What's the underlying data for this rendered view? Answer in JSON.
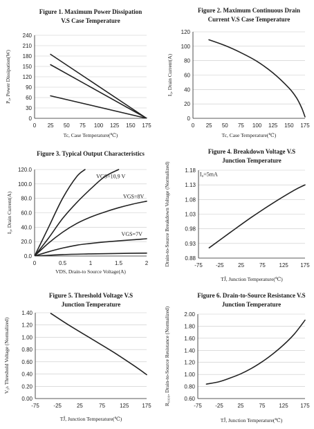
{
  "chart_data": [
    {
      "type": "line",
      "title": [
        "Figure 1. Maximum Power Dissipation",
        "V.S Case Temperature"
      ],
      "xlabel": "Tc, Case Temperature(℃)",
      "ylabel": "P₀, Power Dissipation(W)",
      "xlim": [
        0,
        175
      ],
      "ylim": [
        0,
        240
      ],
      "xticks": [
        0,
        25,
        50,
        75,
        100,
        125,
        150,
        175
      ],
      "yticks": [
        0,
        30,
        60,
        90,
        120,
        150,
        180,
        210,
        240
      ],
      "grid": "horizontal",
      "series": [
        {
          "x": [
            25,
            175
          ],
          "y": [
            185,
            0
          ]
        },
        {
          "x": [
            25,
            175
          ],
          "y": [
            155,
            0
          ]
        },
        {
          "x": [
            25,
            175
          ],
          "y": [
            65,
            0
          ]
        }
      ],
      "annotations": []
    },
    {
      "type": "line",
      "title": [
        "Figure 2. Maximum Continuous Drain",
        "Current V.S Case Temperature"
      ],
      "xlabel": "Tc, Case Temperature(℃)",
      "ylabel": "I₀, Drain Current(A)",
      "xlim": [
        0,
        175
      ],
      "ylim": [
        0,
        120
      ],
      "xticks": [
        0,
        25,
        50,
        75,
        100,
        125,
        150,
        175
      ],
      "yticks": [
        0,
        20,
        40,
        60,
        80,
        100,
        120
      ],
      "grid": "horizontal",
      "series": [
        {
          "x": [
            25,
            50,
            75,
            100,
            125,
            150,
            162,
            170,
            175
          ],
          "y": [
            109,
            101,
            91,
            79,
            63,
            42,
            28,
            14,
            2
          ]
        }
      ],
      "annotations": []
    },
    {
      "type": "line",
      "title": [
        "Figure 3. Typical Output Characteristics"
      ],
      "xlabel": "VDS, Drain-to Source Voltage(A)",
      "ylabel": "I₀, Drain Current(A)",
      "xlim": [
        0,
        2
      ],
      "ylim": [
        0,
        120
      ],
      "xticks": [
        0,
        0.5,
        1,
        1.5,
        2
      ],
      "yticks": [
        0,
        20,
        40,
        60,
        80,
        100,
        120
      ],
      "grid": "horizontal",
      "series": [
        {
          "x": [
            0,
            0.25,
            0.5,
            0.75,
            0.9
          ],
          "y": [
            0,
            40,
            80,
            110,
            122
          ]
        },
        {
          "x": [
            0,
            0.25,
            0.5,
            0.75,
            1.0,
            1.25,
            1.5
          ],
          "y": [
            0,
            25,
            52,
            74,
            93,
            110,
            122
          ]
        },
        {
          "x": [
            0,
            0.25,
            0.5,
            0.75,
            1.0,
            1.25,
            1.5,
            1.75,
            2.0
          ],
          "y": [
            0,
            18,
            33,
            45,
            54,
            61,
            67,
            72,
            76
          ]
        },
        {
          "x": [
            0,
            0.25,
            0.5,
            0.75,
            1.0,
            1.25,
            1.5,
            1.75,
            2.0
          ],
          "y": [
            0,
            6,
            11,
            15,
            17.5,
            19.5,
            21,
            22.5,
            24
          ]
        },
        {
          "x": [
            0,
            0.5,
            1.0,
            1.5,
            2.0
          ],
          "y": [
            0,
            2,
            3,
            3.6,
            4
          ]
        }
      ],
      "annotations": [
        {
          "text": "VGS=10,9 V",
          "x": 1.1,
          "y": 108
        },
        {
          "text": "VGS=8V",
          "x": 1.58,
          "y": 80
        },
        {
          "text": "VGS=7V",
          "x": 1.55,
          "y": 28
        }
      ]
    },
    {
      "type": "line",
      "title": [
        "Figure 4. Breakdown Voltage V.S",
        "Junction Temperature"
      ],
      "xlabel": "TĴ, Junction Temperature(℃)",
      "ylabel": "Drain-to-Source Breakdown Voltage (Normalized)",
      "xlim": [
        -75,
        175
      ],
      "ylim": [
        0.88,
        1.18
      ],
      "xticks": [
        -75,
        -25,
        25,
        75,
        125,
        175
      ],
      "yticks": [
        0.88,
        0.93,
        0.98,
        1.03,
        1.08,
        1.13,
        1.18
      ],
      "grid": "horizontal",
      "series": [
        {
          "x": [
            -50,
            0,
            50,
            100,
            150,
            175
          ],
          "y": [
            0.915,
            0.968,
            1.02,
            1.068,
            1.112,
            1.13
          ]
        }
      ],
      "annotations": [
        {
          "text": "I₀=5mA",
          "x": -72,
          "y": 1.16
        }
      ]
    },
    {
      "type": "line",
      "title": [
        "Figure 5. Threshold Voltage V.S",
        "Junction Temperature"
      ],
      "xlabel": "TĴ, Junction Temperature(℃)",
      "ylabel": "V₀ₕ Threshold Voltage (Normalized)",
      "xlim": [
        -75,
        175
      ],
      "ylim": [
        0,
        1.4
      ],
      "xticks": [
        -75,
        -25,
        25,
        75,
        125,
        175
      ],
      "yticks": [
        0.0,
        0.2,
        0.4,
        0.6,
        0.8,
        1.0,
        1.2,
        1.4
      ],
      "grid": "horizontal",
      "series": [
        {
          "x": [
            -40,
            0,
            50,
            100,
            150,
            175
          ],
          "y": [
            1.39,
            1.2,
            0.98,
            0.76,
            0.52,
            0.39
          ]
        }
      ],
      "annotations": []
    },
    {
      "type": "line",
      "title": [
        "Figure 6. Drain-to-Source Resistance V.S",
        "Junction Temperature"
      ],
      "xlabel": "TĴ, Junction Temperature(℃)",
      "ylabel": "R₀₀₀₀, Drain-to-Source Resistance (Normalized)",
      "xlim": [
        -75,
        175
      ],
      "ylim": [
        0.6,
        2.0
      ],
      "xticks": [
        -75,
        -25,
        25,
        75,
        125,
        175
      ],
      "yticks": [
        0.6,
        0.8,
        1.0,
        1.2,
        1.4,
        1.6,
        1.8,
        2.0
      ],
      "grid": "horizontal",
      "series": [
        {
          "x": [
            -55,
            -25,
            0,
            25,
            50,
            75,
            100,
            125,
            150,
            175
          ],
          "y": [
            0.84,
            0.88,
            0.94,
            1.01,
            1.1,
            1.21,
            1.34,
            1.49,
            1.67,
            1.9
          ]
        }
      ],
      "annotations": []
    }
  ]
}
